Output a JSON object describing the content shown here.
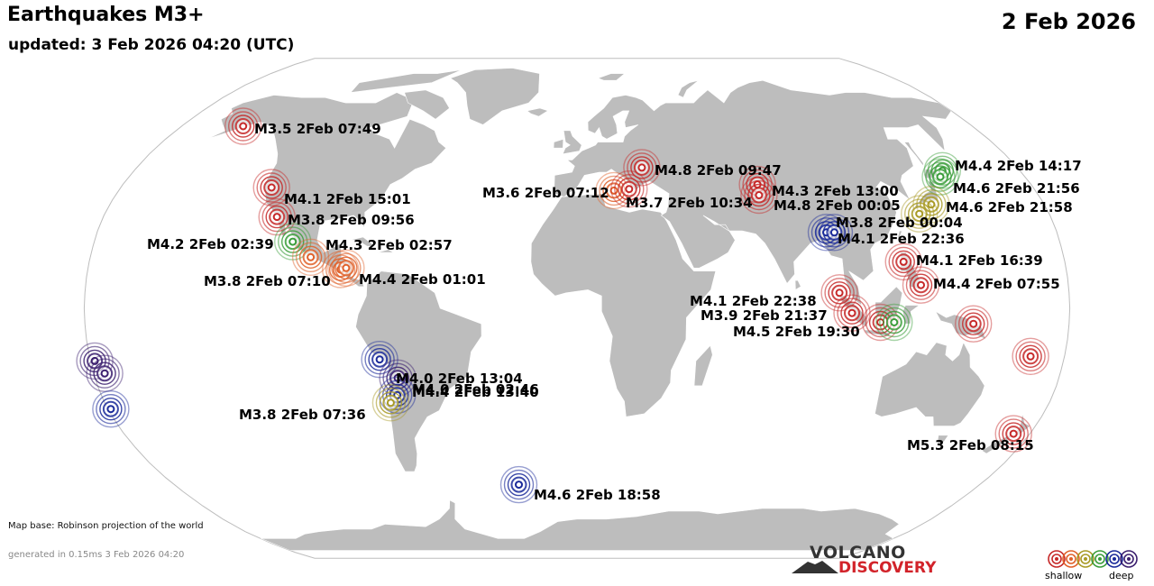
{
  "header": {
    "title": "Earthquakes M3+",
    "updated": "updated:  3 Feb 2026 04:20 (UTC)",
    "date": "2 Feb 2026"
  },
  "footer": {
    "map_base": "Map base: Robinson projection of the world",
    "generated": "generated in 0.15ms  3 Feb 2026 04:20"
  },
  "logo": {
    "line1": "VOLCANO",
    "line2": "DISCOVERY"
  },
  "legend": {
    "shallow": "shallow",
    "deep": "deep",
    "colors": [
      "#c62828",
      "#e0612a",
      "#a89a25",
      "#3a9d3a",
      "#1a2a9a",
      "#3b1e6e"
    ]
  },
  "colors": {
    "land": "#bdbdbd",
    "ocean": "#ffffff",
    "border": "#ffffff"
  },
  "quakes": [
    {
      "label": "M3.5  2Feb 07:49",
      "lat": 59.5,
      "lon": -152.0,
      "color": "#c62828"
    },
    {
      "label": "M4.1  2Feb 15:01",
      "lat": 39.0,
      "lon": -120.5,
      "color": "#c62828"
    },
    {
      "label": "M3.8  2Feb 09:56",
      "lat": 29.5,
      "lon": -114.0,
      "color": "#c62828"
    },
    {
      "label": "M4.2  2Feb 02:39",
      "lat": 21.5,
      "lon": -106.0,
      "color": "#3a9d3a"
    },
    {
      "label": "M4.3  2Feb 02:57",
      "lat": 16.5,
      "lon": -98.5,
      "color": "#e0612a"
    },
    {
      "label": "M3.8  2Feb 07:10",
      "lat": 12.5,
      "lon": -87.0,
      "color": "#e0612a"
    },
    {
      "label": "M4.4  2Feb 01:01",
      "lat": 13.0,
      "lon": -85.0,
      "color": "#e0612a"
    },
    {
      "label": "M4.0  2Feb 13:04",
      "lat": -16.5,
      "lon": -73.0,
      "color": "#1a2a9a"
    },
    {
      "label": "M4.0  2Feb 02:46",
      "lat": -22.5,
      "lon": -67.0,
      "color": "#3b1e6e"
    },
    {
      "label": "M4.4  2Feb 13:40",
      "lat": -28.0,
      "lon": -68.0,
      "color": "#1a2a9a"
    },
    {
      "label": "M3.8  2Feb 07:36",
      "lat": -30.5,
      "lon": -71.0,
      "color": "#a89a25"
    },
    {
      "label": "M4.6  2Feb 18:58",
      "lat": -57.5,
      "lon": -26.0,
      "color": "#1a2a9a"
    },
    {
      "label": "M4.8  2Feb 09:47",
      "lat": 45.5,
      "lon": 26.5,
      "color": "#c62828"
    },
    {
      "label": "M3.6  2Feb 07:12",
      "lat": 38.0,
      "lon": 14.5,
      "color": "#e0612a"
    },
    {
      "label": "M3.7  2Feb 10:34",
      "lat": 38.5,
      "lon": 20.5,
      "color": "#c62828"
    },
    {
      "label": "M4.3  2Feb 13:00",
      "lat": 40.0,
      "lon": 71.5,
      "color": "#c62828"
    },
    {
      "label": "M4.8  2Feb 00:05",
      "lat": 36.5,
      "lon": 71.0,
      "color": "#c62828"
    },
    {
      "label": "M3.8  2Feb 00:04",
      "lat": 24.5,
      "lon": 93.5,
      "color": "#1a2a9a"
    },
    {
      "label": "M4.1  2Feb 22:36",
      "lat": 24.5,
      "lon": 96.5,
      "color": "#1a2a9a"
    },
    {
      "label": "M4.4  2Feb 14:17",
      "lat": 44.5,
      "lon": 148.5,
      "color": "#3a9d3a"
    },
    {
      "label": "M4.6  2Feb 21:56",
      "lat": 42.5,
      "lon": 146.0,
      "color": "#3a9d3a"
    },
    {
      "label": "M4.6  2Feb 21:58",
      "lat": 33.5,
      "lon": 136.5,
      "color": "#a89a25"
    },
    {
      "label": "",
      "lat": 30.5,
      "lon": 130.5,
      "color": "#a89a25"
    },
    {
      "label": "M4.1  2Feb 16:39",
      "lat": 15.0,
      "lon": 120.5,
      "color": "#c62828"
    },
    {
      "label": "M4.4  2Feb 07:55",
      "lat": 7.5,
      "lon": 126.0,
      "color": "#c62828"
    },
    {
      "label": "M4.1  2Feb 22:38",
      "lat": 5.0,
      "lon": 96.0,
      "color": "#c62828"
    },
    {
      "label": "M3.9  2Feb 21:37",
      "lat": -1.5,
      "lon": 100.5,
      "color": "#c62828"
    },
    {
      "label": "M4.5  2Feb 19:30",
      "lat": -4.5,
      "lon": 111.0,
      "color": "#c62828"
    },
    {
      "label": "",
      "lat": -4.5,
      "lon": 116.0,
      "color": "#3a9d3a"
    },
    {
      "label": "",
      "lat": -5.0,
      "lon": 145.0,
      "color": "#c62828"
    },
    {
      "label": "",
      "lat": -15.5,
      "lon": 167.5,
      "color": "#c62828"
    },
    {
      "label": "",
      "lat": -17.0,
      "lon": -178.5,
      "color": "#3b1e6e"
    },
    {
      "label": "",
      "lat": -21.0,
      "lon": -176.0,
      "color": "#3b1e6e"
    },
    {
      "label": "",
      "lat": -32.5,
      "lon": -179.0,
      "color": "#1a2a9a"
    },
    {
      "label": "M5.3  2Feb 08:15",
      "lat": -40.5,
      "lon": 173.5,
      "color": "#c62828"
    }
  ]
}
